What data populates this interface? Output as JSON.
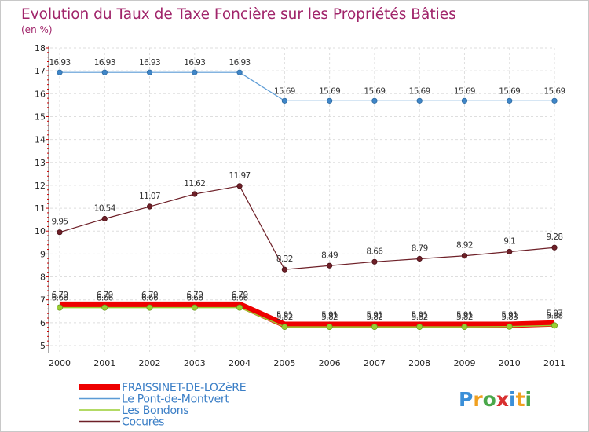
{
  "chart_data": {
    "type": "line",
    "title": "Evolution du Taux de Taxe Foncière sur les Propriétés Bâties",
    "subtitle": "(en %)",
    "xlabel": "",
    "ylabel": "",
    "ylim": [
      5,
      18
    ],
    "yticks": [
      5,
      6,
      7,
      8,
      9,
      10,
      11,
      12,
      13,
      14,
      15,
      16,
      17,
      18
    ],
    "categories": [
      "2000",
      "2001",
      "2002",
      "2003",
      "2004",
      "2005",
      "2006",
      "2007",
      "2008",
      "2009",
      "2010",
      "2011"
    ],
    "grid": true,
    "legend_position": "bottom-left",
    "series": [
      {
        "name": "Cocurès",
        "color": "#6e2028",
        "values": [
          9.95,
          10.54,
          11.07,
          11.62,
          11.97,
          8.32,
          8.49,
          8.66,
          8.79,
          8.92,
          9.1,
          9.28
        ],
        "labels": [
          "9.95",
          "10.54",
          "11.07",
          "11.62",
          "11.97",
          "8.32",
          "8.49",
          "8.66",
          "8.79",
          "8.92",
          "9.1",
          "9.28"
        ]
      },
      {
        "name": "Le Pont-de-Montvert",
        "color": "#5b9bd5",
        "values": [
          16.93,
          16.93,
          16.93,
          16.93,
          16.93,
          15.69,
          15.69,
          15.69,
          15.69,
          15.69,
          15.69,
          15.69
        ],
        "labels": [
          "16.93",
          "16.93",
          "16.93",
          "16.93",
          "16.93",
          "15.69",
          "15.69",
          "15.69",
          "15.69",
          "15.69",
          "15.69",
          "15.69"
        ]
      },
      {
        "name": "FRAISSINET-DE-LOZèRE",
        "color": "#ee0000",
        "values": [
          6.79,
          6.79,
          6.79,
          6.79,
          6.79,
          5.91,
          5.91,
          5.91,
          5.91,
          5.91,
          5.91,
          5.97
        ],
        "labels": [
          "6.79",
          "6.79",
          "6.79",
          "6.79",
          "6.79",
          "5.91",
          "5.91",
          "5.91",
          "5.91",
          "5.91",
          "5.91",
          "5.97"
        ]
      },
      {
        "name": "Les Bondons",
        "color": "#9acd32",
        "values": [
          6.66,
          6.66,
          6.66,
          6.66,
          6.66,
          5.82,
          5.82,
          5.82,
          5.82,
          5.82,
          5.83,
          5.88
        ],
        "labels": [
          "6.66",
          "6.66",
          "6.66",
          "6.66",
          "6.66",
          "5.82",
          "5.82",
          "5.82",
          "5.82",
          "5.82",
          "5.83",
          "5.88"
        ]
      }
    ],
    "legend_order": [
      "FRAISSINET-DE-LOZèRE",
      "Le Pont-de-Montvert",
      "Les Bondons",
      "Cocurès"
    ]
  },
  "brand": {
    "letters": [
      "P",
      "r",
      "o",
      "x",
      "i",
      "t",
      "i"
    ],
    "colors": [
      "#3b8fd8",
      "#f0a020",
      "#4aa84a",
      "#d83030",
      "#3b8fd8",
      "#f0a020",
      "#4aa84a"
    ]
  }
}
